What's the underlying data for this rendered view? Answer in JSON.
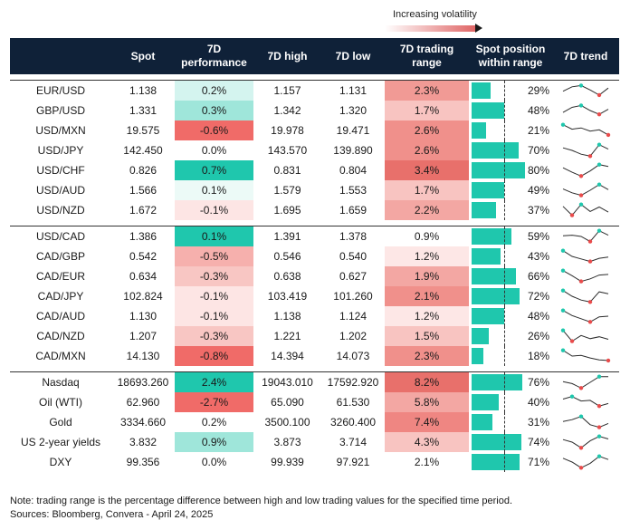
{
  "legend": {
    "label": "Increasing volatility"
  },
  "headers": {
    "spot": "Spot",
    "perf_line1": "7D",
    "perf_line2": "performance",
    "high": "7D high",
    "low": "7D low",
    "range_line1": "7D trading",
    "range_line2": "range",
    "pos_line1": "Spot position",
    "pos_line2": "within range",
    "trend": "7D trend"
  },
  "colors": {
    "header_bg": "#0f2138",
    "bar": "#1fc7ad",
    "dot_hi": "#1fc7ad",
    "dot_lo": "#e94b4b"
  },
  "groups": [
    {
      "rows": [
        {
          "name": "EUR/USD",
          "spot": "1.138",
          "perf": "0.2%",
          "perf_bg": "#d4f4ef",
          "high": "1.157",
          "low": "1.131",
          "range": "2.3%",
          "range_bg": "#f19a95",
          "pos": "29%",
          "trend": [
            0.45,
            0.8,
            0.9,
            0.55,
            0.15,
            0.7
          ]
        },
        {
          "name": "GBP/USD",
          "spot": "1.331",
          "perf": "0.3%",
          "perf_bg": "#9fe6da",
          "high": "1.342",
          "low": "1.320",
          "range": "1.7%",
          "range_bg": "#f8c4c1",
          "pos": "48%",
          "trend": [
            0.35,
            0.75,
            0.9,
            0.5,
            0.2,
            0.6
          ]
        },
        {
          "name": "USD/MXN",
          "spot": "19.575",
          "perf": "-0.6%",
          "perf_bg": "#f06b68",
          "high": "19.978",
          "low": "19.471",
          "range": "2.6%",
          "range_bg": "#f0908b",
          "pos": "21%",
          "trend": [
            0.95,
            0.6,
            0.7,
            0.45,
            0.55,
            0.15
          ]
        },
        {
          "name": "USD/JPY",
          "spot": "142.450",
          "perf": "0.0%",
          "perf_bg": "#ffffff",
          "high": "143.570",
          "low": "139.890",
          "range": "2.6%",
          "range_bg": "#f0908b",
          "pos": "70%",
          "trend": [
            0.7,
            0.5,
            0.2,
            0.05,
            0.95,
            0.6
          ]
        },
        {
          "name": "USD/CHF",
          "spot": "0.826",
          "perf": "0.7%",
          "perf_bg": "#1fc7ad",
          "high": "0.831",
          "low": "0.804",
          "range": "3.4%",
          "range_bg": "#e8706b",
          "pos": "80%",
          "trend": [
            0.7,
            0.35,
            0.05,
            0.45,
            0.95,
            0.8
          ]
        },
        {
          "name": "USD/AUD",
          "spot": "1.566",
          "perf": "0.1%",
          "perf_bg": "#ecfaf7",
          "high": "1.579",
          "low": "1.553",
          "range": "1.7%",
          "range_bg": "#f8c4c1",
          "pos": "49%",
          "trend": [
            0.6,
            0.3,
            0.1,
            0.5,
            0.95,
            0.55
          ]
        },
        {
          "name": "USD/NZD",
          "spot": "1.672",
          "perf": "-0.1%",
          "perf_bg": "#fde5e4",
          "high": "1.695",
          "low": "1.659",
          "range": "2.2%",
          "range_bg": "#f3a7a3",
          "pos": "37%",
          "trend": [
            0.8,
            0.1,
            0.95,
            0.4,
            0.75,
            0.35
          ]
        }
      ]
    },
    {
      "rows": [
        {
          "name": "USD/CAD",
          "spot": "1.386",
          "perf": "0.1%",
          "perf_bg": "#1fc7ad",
          "high": "1.391",
          "low": "1.378",
          "range": "0.9%",
          "range_bg": "#ffffff",
          "pos": "59%",
          "trend": [
            0.55,
            0.6,
            0.5,
            0.1,
            0.95,
            0.6
          ]
        },
        {
          "name": "CAD/GBP",
          "spot": "0.542",
          "perf": "-0.5%",
          "perf_bg": "#f6b0ad",
          "high": "0.546",
          "low": "0.540",
          "range": "1.2%",
          "range_bg": "#fde7e6",
          "pos": "43%",
          "trend": [
            0.95,
            0.5,
            0.3,
            0.1,
            0.35,
            0.45
          ]
        },
        {
          "name": "CAD/EUR",
          "spot": "0.634",
          "perf": "-0.3%",
          "perf_bg": "#f8c6c3",
          "high": "0.638",
          "low": "0.627",
          "range": "1.9%",
          "range_bg": "#f3a7a3",
          "pos": "66%",
          "trend": [
            0.95,
            0.55,
            0.1,
            0.3,
            0.6,
            0.65
          ]
        },
        {
          "name": "CAD/JPY",
          "spot": "102.824",
          "perf": "-0.1%",
          "perf_bg": "#fde5e4",
          "high": "103.419",
          "low": "101.260",
          "range": "2.1%",
          "range_bg": "#f0908b",
          "pos": "72%",
          "trend": [
            0.95,
            0.5,
            0.2,
            0.05,
            0.85,
            0.7
          ]
        },
        {
          "name": "CAD/AUD",
          "spot": "1.130",
          "perf": "-0.1%",
          "perf_bg": "#fde5e4",
          "high": "1.138",
          "low": "1.124",
          "range": "1.2%",
          "range_bg": "#fde7e6",
          "pos": "48%",
          "trend": [
            0.95,
            0.55,
            0.3,
            0.05,
            0.45,
            0.5
          ]
        },
        {
          "name": "CAD/NZD",
          "spot": "1.207",
          "perf": "-0.3%",
          "perf_bg": "#f8c6c3",
          "high": "1.221",
          "low": "1.202",
          "range": "1.5%",
          "range_bg": "#f8c4c1",
          "pos": "26%",
          "trend": [
            0.95,
            0.1,
            0.55,
            0.3,
            0.45,
            0.25
          ]
        },
        {
          "name": "CAD/MXN",
          "spot": "14.130",
          "perf": "-0.8%",
          "perf_bg": "#f06b68",
          "high": "14.394",
          "low": "14.073",
          "range": "2.3%",
          "range_bg": "#f0908b",
          "pos": "18%",
          "trend": [
            0.95,
            0.5,
            0.55,
            0.35,
            0.2,
            0.15
          ]
        }
      ]
    },
    {
      "rows": [
        {
          "name": "Nasdaq",
          "spot": "18693.260",
          "perf": "2.4%",
          "perf_bg": "#1fc7ad",
          "high": "19043.010",
          "low": "17592.920",
          "range": "8.2%",
          "range_bg": "#e8706b",
          "pos": "76%",
          "trend": [
            0.55,
            0.4,
            0.05,
            0.5,
            0.95,
            0.95
          ]
        },
        {
          "name": "Oil (WTI)",
          "spot": "62.960",
          "perf": "-2.7%",
          "perf_bg": "#f06b68",
          "high": "65.090",
          "low": "61.530",
          "range": "5.8%",
          "range_bg": "#f3a7a3",
          "pos": "40%",
          "trend": [
            0.75,
            0.95,
            0.6,
            0.65,
            0.2,
            0.4
          ]
        },
        {
          "name": "Gold",
          "spot": "3334.660",
          "perf": "0.2%",
          "perf_bg": "#ffffff",
          "high": "3500.100",
          "low": "3260.400",
          "range": "7.4%",
          "range_bg": "#ef8682",
          "pos": "31%",
          "trend": [
            0.55,
            0.7,
            0.95,
            0.3,
            0.1,
            0.4
          ]
        },
        {
          "name": "US 2-year yields",
          "spot": "3.832",
          "perf": "0.9%",
          "perf_bg": "#9fe6da",
          "high": "3.873",
          "low": "3.714",
          "range": "4.3%",
          "range_bg": "#f8c4c1",
          "pos": "74%",
          "trend": [
            0.7,
            0.5,
            0.05,
            0.6,
            0.95,
            0.75
          ]
        },
        {
          "name": "DXY",
          "spot": "99.356",
          "perf": "0.0%",
          "perf_bg": "#ffffff",
          "high": "99.939",
          "low": "97.921",
          "range": "2.1%",
          "range_bg": "#ffffff",
          "pos": "71%",
          "trend": [
            0.8,
            0.5,
            0.05,
            0.4,
            0.95,
            0.7
          ]
        }
      ]
    }
  ],
  "notes": {
    "line1": "Note: trading range is the percentage difference between high and low trading values for the specified time period.",
    "line2": "Sources: Bloomberg, Convera - April 24, 2025"
  }
}
